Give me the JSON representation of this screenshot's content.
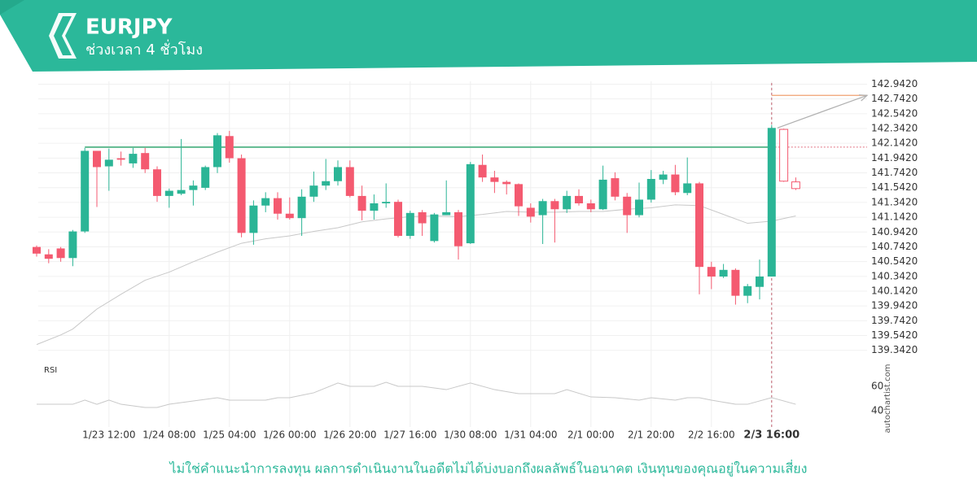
{
  "header": {
    "title": "EURJPY",
    "subtitle": "ช่วงเวลา 4 ชั่วโมง"
  },
  "footer": {
    "disclaimer": "ไม่ใช่คำแนะนำการลงทุน ผลการดำเนินงานในอดีตไม่ได้บ่งบอกถึงผลลัพธ์ในอนาคต เงินทุนของคุณอยู่ในความเสี่ยง"
  },
  "watermark": "autochartist.com",
  "chart_data": {
    "type": "candlestick",
    "categories": [
      null,
      null,
      null,
      null,
      null,
      null,
      "1/23 12:00",
      null,
      null,
      null,
      null,
      "1/24 08:00",
      null,
      null,
      null,
      null,
      "1/25 04:00",
      null,
      null,
      null,
      null,
      "1/26 00:00",
      null,
      null,
      null,
      null,
      "1/26 20:00",
      null,
      null,
      null,
      null,
      "1/27 16:00",
      null,
      null,
      null,
      null,
      "1/30 08:00",
      null,
      null,
      null,
      null,
      "1/31 04:00",
      null,
      null,
      null,
      null,
      "2/1 00:00",
      null,
      null,
      null,
      null,
      "2/1 20:00",
      null,
      null,
      null,
      null,
      "2/2 16:00",
      null,
      null,
      null,
      null,
      "2/3 16:00"
    ],
    "open": [
      140.74,
      140.64,
      140.72,
      140.59,
      140.95,
      142.04,
      141.83,
      141.94,
      141.87,
      142.01,
      141.79,
      141.43,
      141.46,
      141.51,
      141.54,
      141.82,
      142.24,
      141.94,
      140.93,
      141.3,
      141.4,
      141.19,
      141.13,
      141.42,
      141.57,
      141.63,
      141.82,
      141.43,
      141.23,
      141.33,
      141.35,
      140.89,
      141.21,
      140.82,
      141.17,
      141.21,
      140.79,
      141.85,
      141.68,
      141.62,
      141.59,
      141.27,
      141.17,
      141.36,
      141.25,
      141.43,
      141.33,
      141.25,
      141.67,
      141.42,
      141.17,
      141.38,
      141.65,
      141.72,
      141.47,
      141.6,
      140.47,
      140.34,
      140.43,
      140.08,
      140.2,
      140.34
    ],
    "high": [
      140.76,
      140.71,
      140.74,
      140.97,
      142.08,
      142.04,
      142.07,
      142.03,
      142.08,
      142.08,
      141.83,
      141.53,
      142.2,
      141.64,
      141.84,
      142.28,
      142.31,
      141.99,
      141.37,
      141.48,
      141.48,
      141.41,
      141.52,
      141.76,
      141.93,
      141.91,
      141.91,
      141.57,
      141.45,
      141.6,
      141.38,
      141.23,
      141.24,
      141.2,
      141.64,
      141.24,
      141.89,
      141.99,
      141.77,
      141.64,
      141.6,
      141.33,
      141.39,
      141.39,
      141.5,
      141.52,
      141.38,
      141.84,
      141.75,
      141.47,
      141.61,
      141.78,
      141.77,
      141.85,
      141.95,
      141.62,
      140.54,
      140.51,
      140.45,
      140.24,
      140.57,
      142.39
    ],
    "low": [
      140.61,
      140.52,
      140.54,
      140.48,
      140.93,
      141.28,
      141.5,
      141.84,
      141.81,
      141.74,
      141.35,
      141.27,
      141.44,
      141.3,
      141.51,
      141.74,
      141.88,
      140.87,
      140.77,
      141.21,
      141.11,
      141.11,
      140.89,
      141.35,
      141.51,
      141.57,
      141.41,
      141.1,
      141.11,
      141.27,
      140.87,
      140.85,
      140.89,
      140.8,
      141.17,
      140.57,
      140.78,
      141.62,
      141.47,
      141.45,
      141.16,
      141.07,
      140.78,
      140.8,
      141.2,
      141.3,
      141.21,
      141.24,
      141.37,
      140.93,
      141.14,
      141.34,
      141.59,
      141.44,
      141.44,
      140.1,
      140.17,
      140.32,
      139.96,
      139.98,
      140.03,
      140.34
    ],
    "close": [
      140.65,
      140.58,
      140.59,
      140.95,
      142.04,
      141.82,
      141.92,
      141.92,
      142.0,
      141.79,
      141.43,
      141.5,
      141.51,
      141.57,
      141.82,
      142.25,
      141.94,
      140.93,
      141.3,
      141.4,
      141.19,
      141.13,
      141.42,
      141.57,
      141.63,
      141.82,
      141.43,
      141.23,
      141.33,
      141.35,
      140.89,
      141.2,
      141.06,
      141.18,
      141.21,
      140.75,
      141.86,
      141.68,
      141.62,
      141.59,
      141.29,
      141.15,
      141.36,
      141.25,
      141.43,
      141.33,
      141.25,
      141.65,
      141.42,
      141.17,
      141.38,
      141.66,
      141.72,
      141.48,
      141.6,
      140.47,
      140.34,
      140.43,
      140.08,
      140.21,
      140.34,
      142.35
    ],
    "up_color": "#2bb596",
    "down_color": "#f45a70",
    "forecast": {
      "open": [
        142.33,
        141.62
      ],
      "high": [
        142.34,
        141.68
      ],
      "low": [
        141.62,
        141.51
      ],
      "close": [
        141.63,
        141.53
      ],
      "color": "#f45a70"
    },
    "level": 142.09,
    "level_color": "#5fba8f",
    "target": 142.79,
    "target_color": "#f0a070",
    "ma": {
      "x": [
        0,
        2,
        3,
        5,
        7,
        9,
        11,
        13,
        15,
        17,
        19,
        21,
        23,
        25,
        27,
        29,
        31,
        33,
        35,
        37,
        39,
        41,
        43,
        45,
        47,
        49,
        51,
        53,
        55,
        57,
        59,
        61,
        63
      ],
      "values": [
        139.42,
        139.55,
        139.63,
        139.9,
        140.1,
        140.29,
        140.4,
        140.54,
        140.67,
        140.79,
        140.85,
        140.89,
        140.95,
        141.0,
        141.08,
        141.12,
        141.15,
        141.16,
        141.15,
        141.18,
        141.22,
        141.21,
        141.21,
        141.22,
        141.22,
        141.25,
        141.27,
        141.31,
        141.3,
        141.18,
        141.06,
        141.09,
        141.16
      ],
      "color": "#c8c8c8"
    },
    "ylim": [
      139.24,
      142.98
    ],
    "yticks": [
      {
        "value": 142.942,
        "label": "142.9420"
      },
      {
        "value": 142.742,
        "label": "142.7420"
      },
      {
        "value": 142.542,
        "label": "142.5420"
      },
      {
        "value": 142.342,
        "label": "142.3420"
      },
      {
        "value": 142.142,
        "label": "142.1420"
      },
      {
        "value": 141.942,
        "label": "141.9420"
      },
      {
        "value": 141.742,
        "label": "141.7420"
      },
      {
        "value": 141.542,
        "label": "141.5420"
      },
      {
        "value": 141.342,
        "label": "141.3420"
      },
      {
        "value": 141.142,
        "label": "141.1420"
      },
      {
        "value": 140.942,
        "label": "140.9420"
      },
      {
        "value": 140.742,
        "label": "140.7420"
      },
      {
        "value": 140.542,
        "label": "140.5420"
      },
      {
        "value": 140.342,
        "label": "140.3420"
      },
      {
        "value": 140.142,
        "label": "140.1420"
      },
      {
        "value": 139.942,
        "label": "139.9420"
      },
      {
        "value": 139.742,
        "label": "139.7420"
      },
      {
        "value": 139.542,
        "label": "139.5420"
      },
      {
        "value": 139.342,
        "label": "139.3420"
      }
    ],
    "grid": true,
    "rsi": {
      "label": "RSI",
      "x": [
        0,
        3,
        4,
        5,
        6,
        7,
        9,
        10,
        11,
        13,
        15,
        16,
        19,
        20,
        21,
        23,
        25,
        26,
        28,
        29,
        30,
        32,
        34,
        36,
        38,
        40,
        43,
        44,
        46,
        48,
        50,
        51,
        53,
        54,
        55,
        56,
        58,
        59,
        61,
        63
      ],
      "values": [
        45.3,
        45.3,
        48.7,
        45.3,
        48.7,
        45.3,
        42.7,
        42.7,
        45.3,
        48,
        50.7,
        48.7,
        48.7,
        50.7,
        50.7,
        54.7,
        62.7,
        60,
        60,
        63.3,
        60,
        60,
        57.3,
        62.7,
        57.3,
        54,
        54,
        57.3,
        51.3,
        50.7,
        48.7,
        50.7,
        48.7,
        50.7,
        50.7,
        48.7,
        45.3,
        45.3,
        50.7,
        45.3
      ],
      "ylim": [
        26,
        70
      ],
      "yticks": [
        60,
        40
      ],
      "color": "#c8c8c8"
    }
  }
}
